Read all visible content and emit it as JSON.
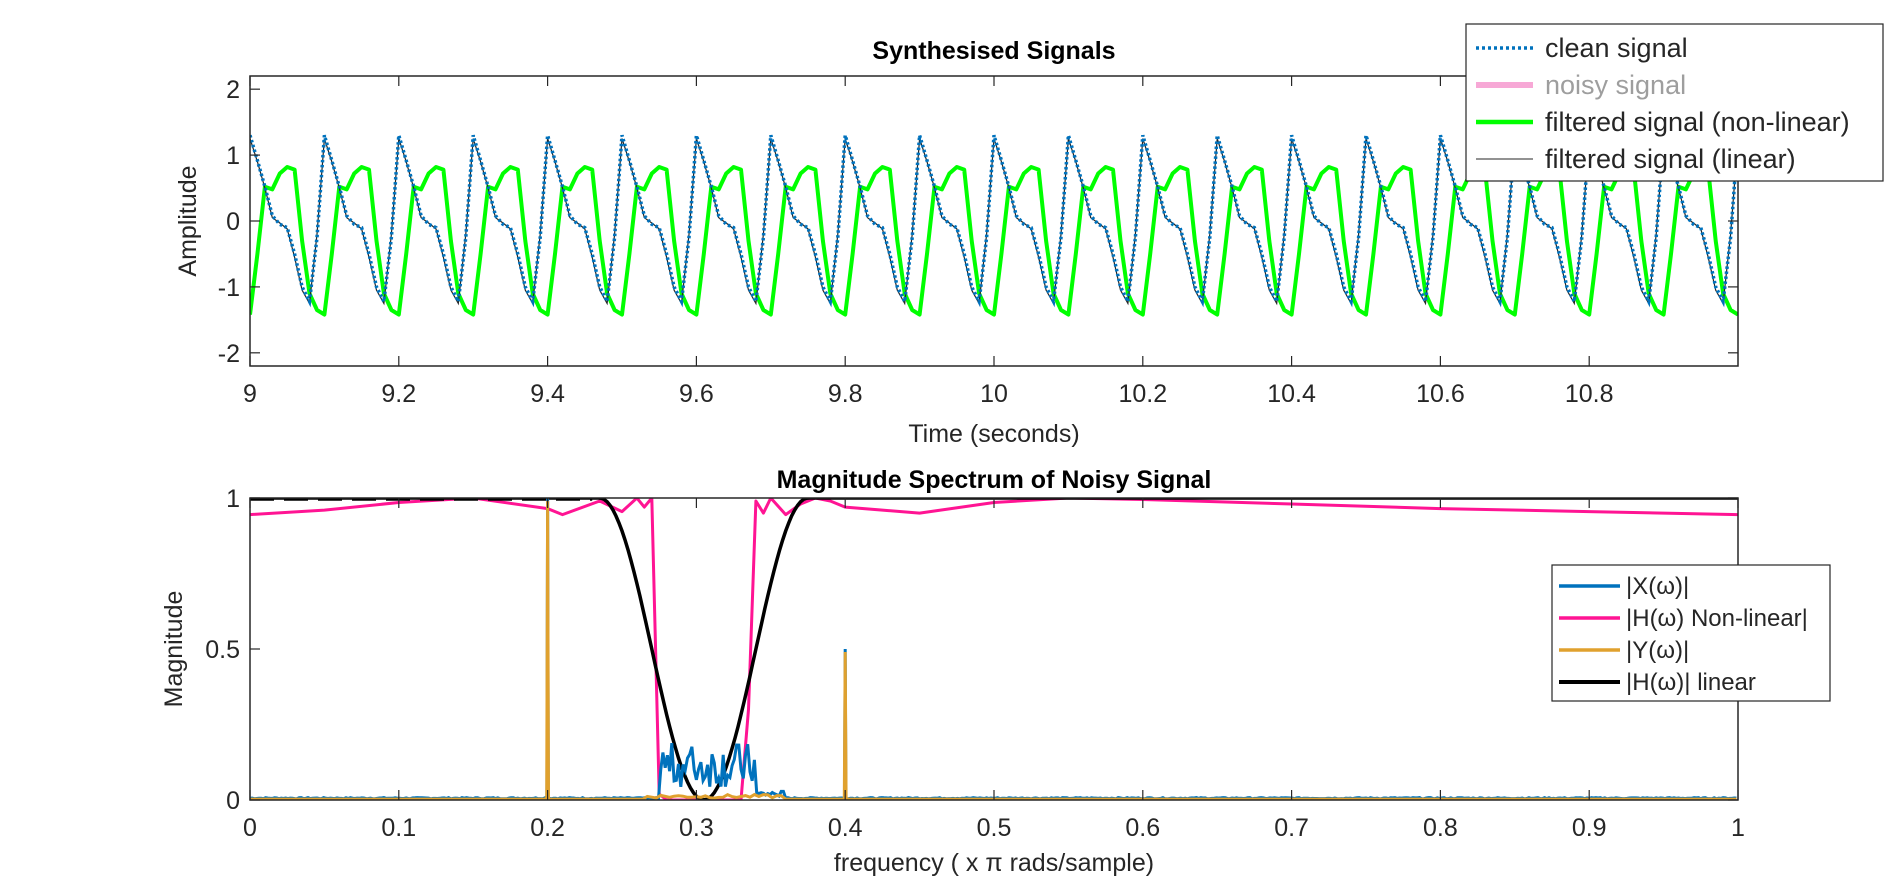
{
  "colors": {
    "clean": "#0072BD",
    "noisy": "#F7A8D6",
    "noisy_text": "#9E9E9E",
    "nonlinear": "#00FF00",
    "linear_thin": "#262626",
    "X": "#0072BD",
    "Hnl": "#FF1493",
    "Y": "#E0A12E",
    "Hlin": "#000000"
  },
  "chart_data": [
    {
      "type": "line",
      "title": "Synthesised Signals",
      "xlabel": "Time (seconds)",
      "ylabel": "Amplitude",
      "xlim": [
        9.0,
        11.0
      ],
      "ylim": [
        -2.2,
        2.2
      ],
      "xticks": [
        9,
        9.2,
        9.4,
        9.6,
        9.8,
        10,
        10.2,
        10.4,
        10.6,
        10.8
      ],
      "xtick_labels": [
        "9",
        "9.2",
        "9.4",
        "9.6",
        "9.8",
        "10",
        "10.2",
        "10.4",
        "10.6",
        "10.8"
      ],
      "yticks": [
        -2,
        -1,
        0,
        1,
        2
      ],
      "ytick_labels": [
        "-2",
        "-1",
        "0",
        "1",
        "2"
      ],
      "grid": false,
      "legend_position": "top-right",
      "series": [
        {
          "name": "clean signal",
          "style": "dotted",
          "x_start": 9.0,
          "x_end": 11.0,
          "dt": 0.01,
          "period": 0.1,
          "phase": 0.0,
          "shape": [
            1.3,
            0.92,
            0.52,
            0.08,
            -0.05,
            -0.1,
            -0.5,
            -1.0,
            -1.22,
            -0.25
          ]
        },
        {
          "name": "noisy signal",
          "style": "solid",
          "hidden_behind": true
        },
        {
          "name": "filtered signal (non-linear)",
          "style": "solid",
          "x_start": 9.0,
          "x_end": 11.0,
          "dt": 0.01,
          "period": 0.1,
          "phase": 0.0,
          "shape": [
            -1.42,
            -0.5,
            0.52,
            0.48,
            0.72,
            0.82,
            0.78,
            -0.3,
            -1.1,
            -1.35
          ]
        },
        {
          "name": "filtered signal (linear)",
          "style": "solid",
          "x_start": 9.0,
          "x_end": 11.0,
          "dt": 0.01,
          "period": 0.1,
          "phase": 0.0,
          "shape": [
            1.25,
            0.9,
            0.5,
            0.05,
            -0.03,
            -0.12,
            -0.55,
            -1.05,
            -1.25,
            -0.2
          ]
        }
      ]
    },
    {
      "type": "line",
      "title": "Magnitude Spectrum of Noisy Signal",
      "xlabel": "frequency ( x π rads/sample)",
      "ylabel": "Magnitude",
      "xlim": [
        0,
        1
      ],
      "ylim": [
        0,
        1
      ],
      "xticks": [
        0,
        0.1,
        0.2,
        0.3,
        0.4,
        0.5,
        0.6,
        0.7,
        0.8,
        0.9,
        1
      ],
      "xtick_labels": [
        "0",
        "0.1",
        "0.2",
        "0.3",
        "0.4",
        "0.5",
        "0.6",
        "0.7",
        "0.8",
        "0.9",
        "1"
      ],
      "yticks": [
        0,
        0.5,
        1
      ],
      "ytick_labels": [
        "0",
        "0.5",
        "1"
      ],
      "grid": false,
      "legend_position": "right",
      "series": [
        {
          "name": "|X(ω)|",
          "peaks": [
            [
              0.2,
              1.0
            ],
            [
              0.4,
              0.5
            ]
          ],
          "noise_band": [
            0.275,
            0.34
          ],
          "noise_level": 0.19
        },
        {
          "name": "|H(ω) Non-linear|",
          "x": [
            0,
            0.05,
            0.1,
            0.15,
            0.2,
            0.21,
            0.235,
            0.25,
            0.26,
            0.265,
            0.27,
            0.275,
            0.28,
            0.33,
            0.335,
            0.34,
            0.345,
            0.35,
            0.36,
            0.37,
            0.38,
            0.39,
            0.4,
            0.45,
            0.5,
            0.55,
            0.6,
            0.7,
            0.8,
            0.9,
            1
          ],
          "y": [
            0.945,
            0.96,
            0.985,
            1.0,
            0.965,
            0.945,
            0.99,
            0.955,
            1.0,
            0.97,
            1.0,
            0.02,
            0.0,
            0.0,
            0.3,
            0.99,
            0.95,
            1.0,
            0.945,
            0.98,
            1.0,
            0.99,
            0.97,
            0.95,
            0.985,
            1.0,
            0.995,
            0.98,
            0.965,
            0.955,
            0.945
          ]
        },
        {
          "name": "|Y(ω)|",
          "peaks": [
            [
              0.2,
              0.99
            ],
            [
              0.4,
              0.49
            ]
          ]
        },
        {
          "name": "|H(ω)| linear",
          "center": 0.305,
          "floor": 0.0,
          "edges": [
            0.235,
            0.375
          ]
        }
      ]
    }
  ]
}
